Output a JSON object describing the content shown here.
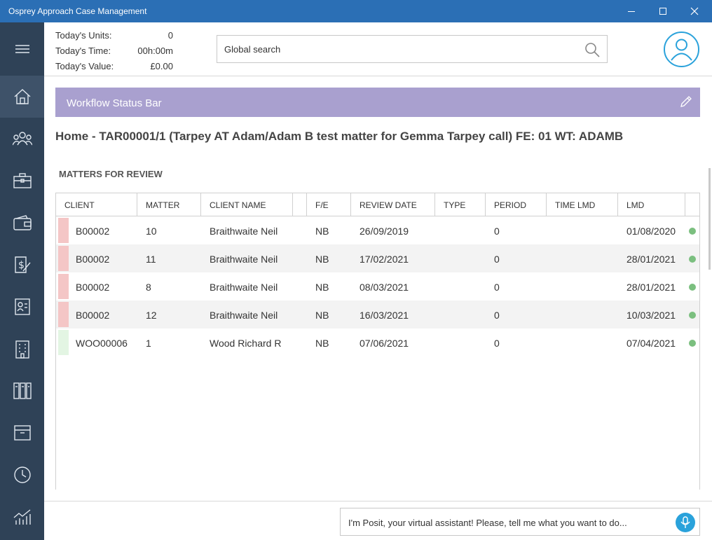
{
  "window": {
    "title": "Osprey Approach Case Management"
  },
  "stats": {
    "units_label": "Today's Units:",
    "units_value": "0",
    "time_label": "Today's Time:",
    "time_value": "00h:00m",
    "value_label": "Today's Value:",
    "value_value": "£0.00"
  },
  "search": {
    "placeholder": "Global search"
  },
  "sidebar": {
    "items": [
      {
        "icon": "home-icon"
      },
      {
        "icon": "people-icon"
      },
      {
        "icon": "briefcase-icon"
      },
      {
        "icon": "wallet-icon"
      },
      {
        "icon": "billing-icon"
      },
      {
        "icon": "contacts-icon"
      },
      {
        "icon": "building-icon"
      },
      {
        "icon": "files-icon"
      },
      {
        "icon": "archive-icon"
      },
      {
        "icon": "clock-icon"
      },
      {
        "icon": "chart-icon"
      }
    ]
  },
  "workflow": {
    "label": "Workflow Status Bar"
  },
  "breadcrumb": "Home - TAR00001/1 (Tarpey AT Adam/Adam B test matter for Gemma Tarpey call) FE: 01 WT: ADAMB",
  "section_title": "MATTERS FOR REVIEW",
  "table": {
    "headers": [
      "CLIENT",
      "MATTER",
      "CLIENT NAME",
      "F/E",
      "REVIEW DATE",
      "TYPE",
      "PERIOD",
      "TIME LMD",
      "LMD"
    ],
    "rows": [
      {
        "client": "B00002",
        "matter": "10",
        "client_name": "Braithwaite Neil",
        "fe": "NB",
        "review_date": "26/09/2019",
        "type": "",
        "period": "0",
        "time_lmd": "",
        "lmd": "01/08/2020",
        "marker": "#f4c6c6"
      },
      {
        "client": "B00002",
        "matter": "11",
        "client_name": "Braithwaite Neil",
        "fe": "NB",
        "review_date": "17/02/2021",
        "type": "",
        "period": "0",
        "time_lmd": "",
        "lmd": "28/01/2021",
        "marker": "#f4c6c6"
      },
      {
        "client": "B00002",
        "matter": "8",
        "client_name": "Braithwaite Neil",
        "fe": "NB",
        "review_date": "08/03/2021",
        "type": "",
        "period": "0",
        "time_lmd": "",
        "lmd": "28/01/2021",
        "marker": "#f4c6c6"
      },
      {
        "client": "B00002",
        "matter": "12",
        "client_name": "Braithwaite Neil",
        "fe": "NB",
        "review_date": "16/03/2021",
        "type": "",
        "period": "0",
        "time_lmd": "",
        "lmd": "10/03/2021",
        "marker": "#f4c6c6"
      },
      {
        "client": "WOO00006",
        "matter": "1",
        "client_name": "Wood Richard R",
        "fe": "NB",
        "review_date": "07/06/2021",
        "type": "",
        "period": "0",
        "time_lmd": "",
        "lmd": "07/04/2021",
        "marker": "#e3f5e3"
      }
    ]
  },
  "assistant": {
    "placeholder": "I'm Posit, your virtual assistant! Please, tell me what you want to do..."
  },
  "colors": {
    "titlebar": "#2b6fb5",
    "sidebar": "#2f4257",
    "workflow": "#a9a0cf",
    "accent": "#2aa2db",
    "status_dot": "#7bbf7f"
  }
}
